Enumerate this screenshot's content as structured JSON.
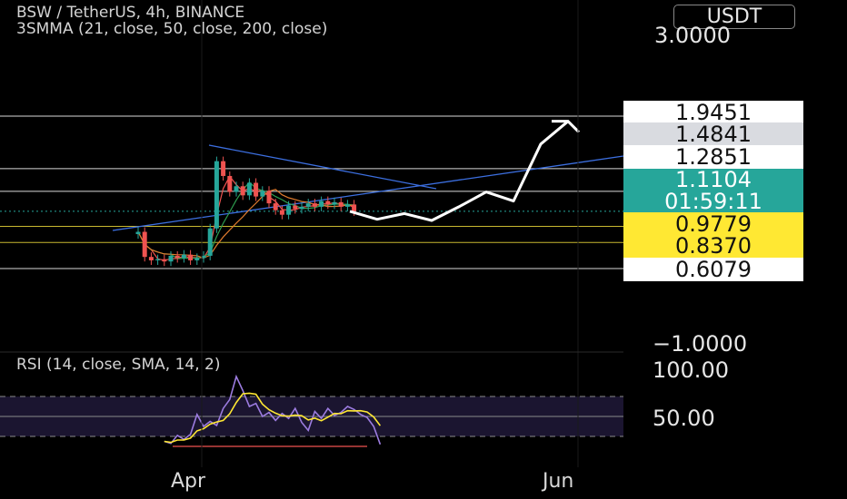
{
  "header": {
    "symbol_line": "BSW / TetherUS, 4h, BINANCE",
    "indicator_line": "3SMMA (21, close, 50, close, 200, close)",
    "currency_button": "USDT"
  },
  "price_axis": {
    "top_label": "3.0000",
    "bottom_label": "−1.0000"
  },
  "price_levels": [
    {
      "value": "1.9451",
      "style": "white"
    },
    {
      "value": "1.4841",
      "style": "gray"
    },
    {
      "value": "1.2851",
      "style": "white"
    },
    {
      "value": "0.9779",
      "style": "yellow"
    },
    {
      "value": "0.8370",
      "style": "yellow"
    },
    {
      "value": "0.6079",
      "style": "white"
    }
  ],
  "current_price": {
    "value": "1.1104",
    "countdown": "01:59:11",
    "color": "#26a69a"
  },
  "rsi": {
    "label": "RSI (14, close, SMA, 14, 2)",
    "top_label": "100.00",
    "mid_label": "50.00",
    "bands": [
      70,
      50,
      30
    ]
  },
  "time_axis": {
    "labels": [
      "Apr",
      "Jun"
    ]
  },
  "colors": {
    "up": "#26a69a",
    "down": "#ef5350",
    "trendline": "#3c6fe0",
    "projection": "#ffffff",
    "rsi_line": "#9c7ce0",
    "rsi_ma": "#ffe833",
    "ma_fast": "#ef5350",
    "ma_mid": "#2e9e4f",
    "ma_slow": "#e07b2e"
  },
  "chart_data": {
    "type": "line",
    "title": "BSW / TetherUS, 4h, BINANCE",
    "timeframe": "4h",
    "x_tick_labels": [
      "Apr",
      "Jun"
    ],
    "y_axis_range": [
      -1.0,
      3.0
    ],
    "horizontal_levels": [
      1.9451,
      1.4841,
      1.2851,
      0.9779,
      0.837,
      0.6079
    ],
    "series": [
      {
        "name": "BSW / TetherUS",
        "points": [
          {
            "t": "mar-21",
            "v": 0.93
          },
          {
            "t": "mar-22",
            "v": 0.71
          },
          {
            "t": "mar-23",
            "v": 0.68
          },
          {
            "t": "mar-24",
            "v": 0.69
          },
          {
            "t": "mar-25",
            "v": 0.67
          },
          {
            "t": "mar-26",
            "v": 0.72
          },
          {
            "t": "mar-27",
            "v": 0.7
          },
          {
            "t": "mar-28",
            "v": 0.73
          },
          {
            "t": "mar-29",
            "v": 0.68
          },
          {
            "t": "mar-30",
            "v": 0.7
          },
          {
            "t": "mar-31",
            "v": 0.72
          },
          {
            "t": "apr-01",
            "v": 0.96
          },
          {
            "t": "apr-02",
            "v": 1.55
          },
          {
            "t": "apr-03",
            "v": 1.42
          },
          {
            "t": "apr-04",
            "v": 1.28
          },
          {
            "t": "apr-05",
            "v": 1.33
          },
          {
            "t": "apr-06",
            "v": 1.25
          },
          {
            "t": "apr-07",
            "v": 1.36
          },
          {
            "t": "apr-08",
            "v": 1.24
          },
          {
            "t": "apr-09",
            "v": 1.29
          },
          {
            "t": "apr-10",
            "v": 1.18
          },
          {
            "t": "apr-11",
            "v": 1.12
          },
          {
            "t": "apr-12",
            "v": 1.08
          },
          {
            "t": "apr-13",
            "v": 1.16
          },
          {
            "t": "apr-14",
            "v": 1.13
          },
          {
            "t": "apr-15",
            "v": 1.15
          },
          {
            "t": "apr-16",
            "v": 1.18
          },
          {
            "t": "apr-17",
            "v": 1.15
          },
          {
            "t": "apr-18",
            "v": 1.2
          },
          {
            "t": "apr-19",
            "v": 1.17
          },
          {
            "t": "apr-20",
            "v": 1.19
          },
          {
            "t": "apr-21",
            "v": 1.15
          },
          {
            "t": "apr-22",
            "v": 1.17
          },
          {
            "t": "apr-23",
            "v": 1.11
          }
        ]
      },
      {
        "name": "RSI (14, close, SMA, 14, 2)",
        "points": [
          {
            "t": "mar-21",
            "v": 25
          },
          {
            "t": "mar-22",
            "v": 23
          },
          {
            "t": "mar-23",
            "v": 31
          },
          {
            "t": "mar-24",
            "v": 27
          },
          {
            "t": "mar-25",
            "v": 32
          },
          {
            "t": "mar-26",
            "v": 52
          },
          {
            "t": "mar-27",
            "v": 40
          },
          {
            "t": "mar-28",
            "v": 45
          },
          {
            "t": "mar-29",
            "v": 41
          },
          {
            "t": "mar-30",
            "v": 58
          },
          {
            "t": "mar-31",
            "v": 67
          },
          {
            "t": "apr-01",
            "v": 90
          },
          {
            "t": "apr-02",
            "v": 76
          },
          {
            "t": "apr-03",
            "v": 60
          },
          {
            "t": "apr-04",
            "v": 63
          },
          {
            "t": "apr-05",
            "v": 50
          },
          {
            "t": "apr-06",
            "v": 54
          },
          {
            "t": "apr-07",
            "v": 46
          },
          {
            "t": "apr-08",
            "v": 53
          },
          {
            "t": "apr-09",
            "v": 48
          },
          {
            "t": "apr-10",
            "v": 58
          },
          {
            "t": "apr-11",
            "v": 44
          },
          {
            "t": "apr-12",
            "v": 36
          },
          {
            "t": "apr-13",
            "v": 55
          },
          {
            "t": "apr-14",
            "v": 48
          },
          {
            "t": "apr-15",
            "v": 58
          },
          {
            "t": "apr-16",
            "v": 51
          },
          {
            "t": "apr-17",
            "v": 54
          },
          {
            "t": "apr-18",
            "v": 60
          },
          {
            "t": "apr-19",
            "v": 57
          },
          {
            "t": "apr-20",
            "v": 52
          },
          {
            "t": "apr-21",
            "v": 49
          },
          {
            "t": "apr-22",
            "v": 40
          },
          {
            "t": "apr-23",
            "v": 22
          }
        ]
      }
    ],
    "projected_path": [
      {
        "step": 0,
        "v": 1.11
      },
      {
        "step": 1,
        "v": 1.04
      },
      {
        "step": 2,
        "v": 1.09
      },
      {
        "step": 3,
        "v": 1.03
      },
      {
        "step": 4,
        "v": 1.15
      },
      {
        "step": 5,
        "v": 1.28
      },
      {
        "step": 6,
        "v": 1.2
      },
      {
        "step": 7,
        "v": 1.7
      },
      {
        "step": 8,
        "v": 1.9
      }
    ],
    "rsi_levels": [
      70,
      50,
      30
    ]
  }
}
